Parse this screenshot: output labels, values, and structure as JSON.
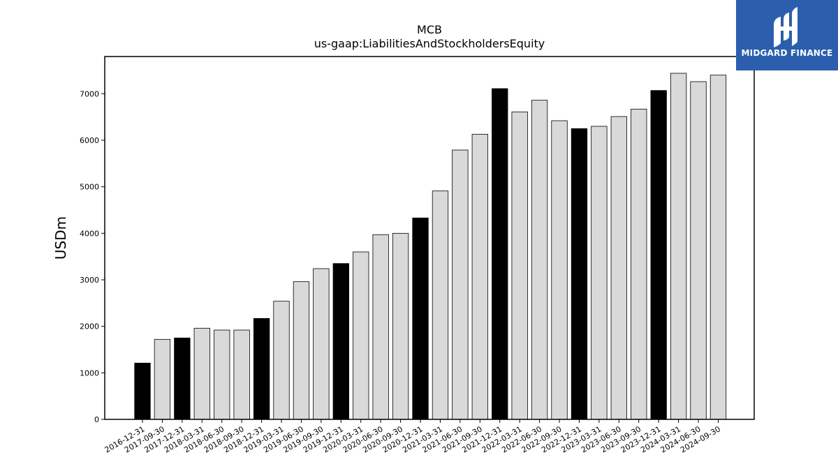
{
  "brand": {
    "name": "MIDGARD FINANCE",
    "logo_icon": "midgard-logo-icon",
    "color": "#2b5fae"
  },
  "chart_data": {
    "type": "bar",
    "title": "MCB",
    "subtitle": "us-gaap:LiabilitiesAndStockholdersEquity",
    "ylabel": "USDm",
    "xlabel": "",
    "ylim": [
      0,
      7800
    ],
    "yticks": [
      0,
      1000,
      2000,
      3000,
      4000,
      5000,
      6000,
      7000
    ],
    "grid": false,
    "colors": {
      "annual": "#000000",
      "quarterly": "#d9d9d9",
      "edge": "#000000"
    },
    "categories": [
      "2016-12-31",
      "2017-09-30",
      "2017-12-31",
      "2018-03-31",
      "2018-06-30",
      "2018-09-30",
      "2018-12-31",
      "2019-03-31",
      "2019-06-30",
      "2019-09-30",
      "2019-12-31",
      "2020-03-31",
      "2020-06-30",
      "2020-09-30",
      "2020-12-31",
      "2021-03-31",
      "2021-06-30",
      "2021-09-30",
      "2021-12-31",
      "2022-03-31",
      "2022-06-30",
      "2022-09-30",
      "2022-12-31",
      "2023-03-31",
      "2023-06-30",
      "2023-09-30",
      "2023-12-31",
      "2024-03-31",
      "2024-06-30",
      "2024-09-30"
    ],
    "values": [
      1210,
      1720,
      1750,
      1960,
      1920,
      1920,
      2170,
      2540,
      2960,
      3240,
      3350,
      3600,
      3970,
      4000,
      4330,
      4910,
      5790,
      6130,
      7110,
      6610,
      6860,
      6420,
      6250,
      6300,
      6510,
      6670,
      7070,
      7440,
      7260,
      7400
    ],
    "annual": [
      true,
      false,
      true,
      false,
      false,
      false,
      true,
      false,
      false,
      false,
      true,
      false,
      false,
      false,
      true,
      false,
      false,
      false,
      true,
      false,
      false,
      false,
      true,
      false,
      false,
      false,
      true,
      false,
      false,
      false
    ]
  }
}
